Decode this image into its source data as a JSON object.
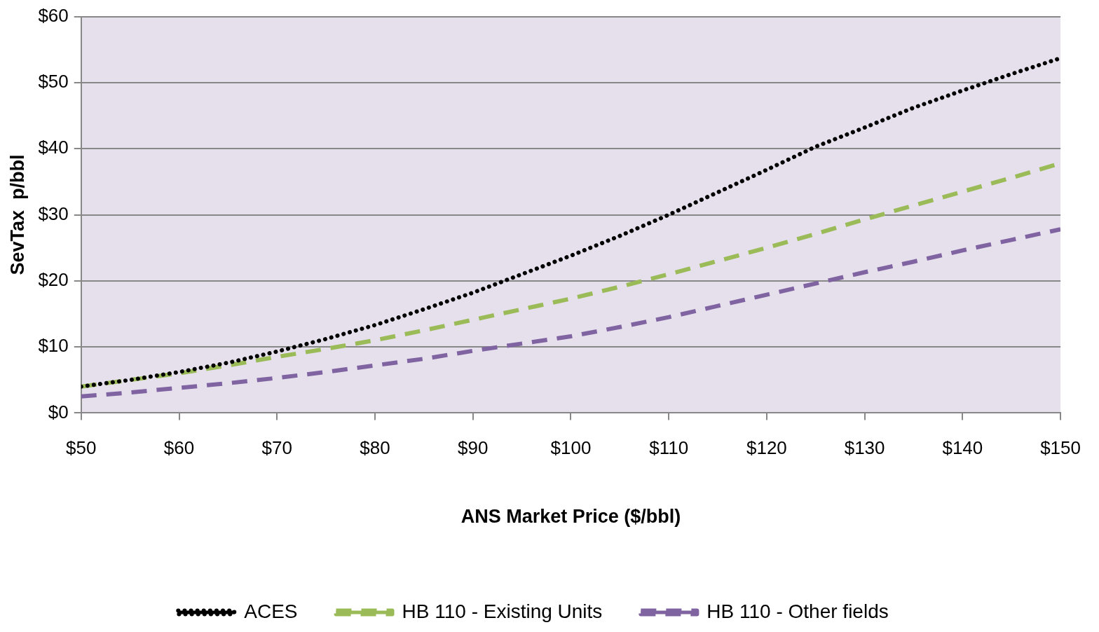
{
  "chart_data": {
    "type": "line",
    "xlabel": "ANS Market Price ($/bbl)",
    "ylabel": "SevTax  p/bbl",
    "x": [
      50,
      55,
      60,
      65,
      70,
      75,
      80,
      85,
      90,
      95,
      100,
      105,
      110,
      115,
      120,
      125,
      130,
      135,
      140,
      145,
      150
    ],
    "series": [
      {
        "name": "ACES",
        "color": "#000000",
        "line_style": "dotted",
        "values": [
          4,
          5,
          6.2,
          7.6,
          9.3,
          11.2,
          13.3,
          15.7,
          18.2,
          21,
          23.8,
          26.8,
          30,
          33.4,
          36.8,
          40.3,
          43.2,
          46.2,
          48.8,
          51.3,
          53.7
        ]
      },
      {
        "name": "HB 110 - Existing Units",
        "color": "#9bbb59",
        "line_style": "dashed",
        "values": [
          4,
          5,
          6,
          7.2,
          8.5,
          9.7,
          11,
          12.5,
          14.1,
          15.7,
          17.3,
          19.1,
          21,
          23,
          25,
          27.1,
          29.3,
          31.4,
          33.5,
          35.6,
          37.8
        ]
      },
      {
        "name": "HB 110 - Other fields",
        "color": "#8064a2",
        "line_style": "dashed",
        "values": [
          2.5,
          3.1,
          3.8,
          4.5,
          5.3,
          6.2,
          7.2,
          8.2,
          9.4,
          10.5,
          11.6,
          13,
          14.5,
          16.2,
          17.9,
          19.6,
          21.3,
          22.9,
          24.6,
          26.2,
          27.8
        ]
      }
    ],
    "xlim": [
      50,
      150
    ],
    "xticks": [
      {
        "value": 50,
        "label": "$50"
      },
      {
        "value": 60,
        "label": "$60"
      },
      {
        "value": 70,
        "label": "$70"
      },
      {
        "value": 80,
        "label": "$80"
      },
      {
        "value": 90,
        "label": "$90"
      },
      {
        "value": 100,
        "label": "$100"
      },
      {
        "value": 110,
        "label": "$110"
      },
      {
        "value": 120,
        "label": "$120"
      },
      {
        "value": 130,
        "label": "$130"
      },
      {
        "value": 140,
        "label": "$140"
      },
      {
        "value": 150,
        "label": "$150"
      }
    ],
    "ylim": [
      0,
      60
    ],
    "yticks": [
      {
        "value": 0,
        "label": "$0"
      },
      {
        "value": 10,
        "label": "$10"
      },
      {
        "value": 20,
        "label": "$20"
      },
      {
        "value": 30,
        "label": "$30"
      },
      {
        "value": 40,
        "label": "$40"
      },
      {
        "value": 50,
        "label": "$50"
      },
      {
        "value": 60,
        "label": "$60"
      }
    ],
    "grid": "y",
    "legend": "bottom",
    "marker": "none"
  }
}
